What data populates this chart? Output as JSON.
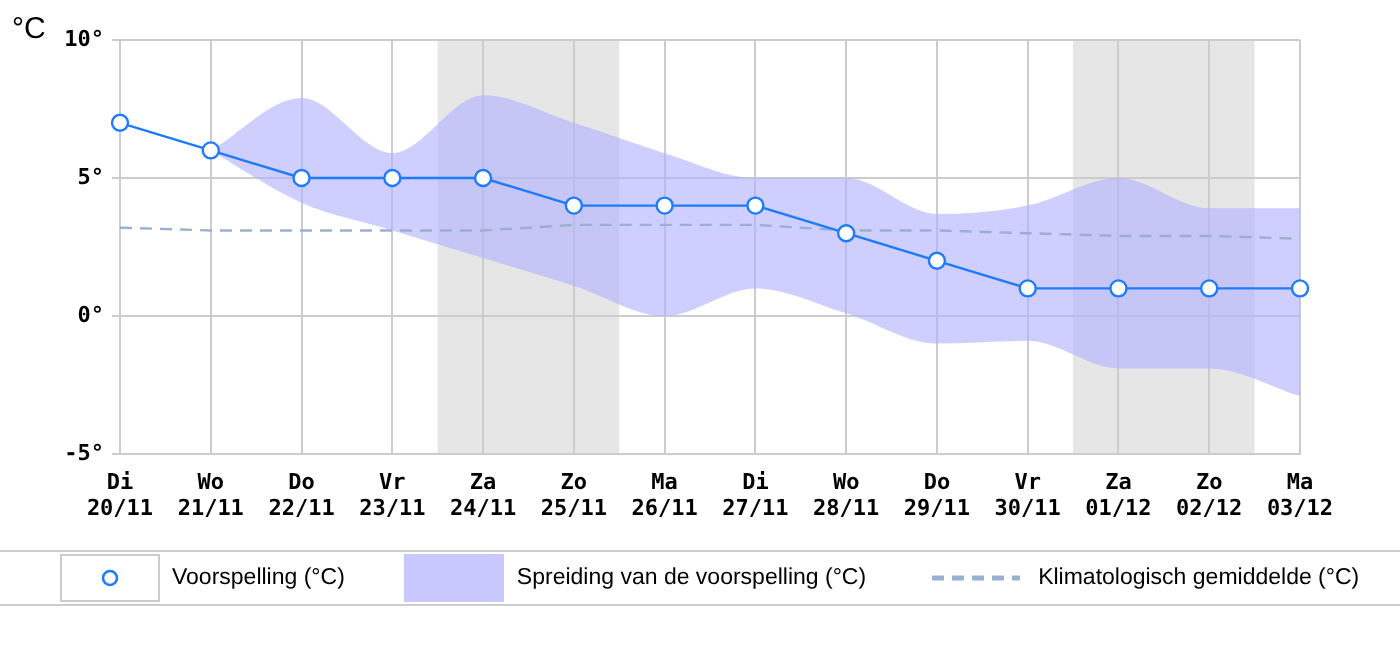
{
  "chart_data": {
    "type": "line",
    "ylabel": "°C",
    "categories": [
      "Di\n20/11",
      "Wo\n21/11",
      "Do\n22/11",
      "Vr\n23/11",
      "Za\n24/11",
      "Zo\n25/11",
      "Ma\n26/11",
      "Di\n27/11",
      "Wo\n28/11",
      "Do\n29/11",
      "Vr\n30/11",
      "Za\n01/12",
      "Zo\n02/12",
      "Ma\n03/12"
    ],
    "series": [
      {
        "name": "Voorspelling (°C)",
        "type": "line",
        "color": "#1e7bff",
        "marker": "circle",
        "values": [
          7,
          6,
          5,
          5,
          5,
          4,
          4,
          4,
          3,
          2,
          1,
          1,
          1,
          1
        ],
        "lower": [
          null,
          6,
          4.1,
          3.1,
          2.1,
          1.1,
          0,
          1,
          0.1,
          -1,
          -0.9,
          -1.9,
          -1.9,
          -2.9
        ],
        "upper": [
          null,
          6,
          7.9,
          5.9,
          8,
          7,
          5.9,
          5,
          5,
          3.7,
          4,
          5,
          3.9,
          3.9
        ]
      },
      {
        "name": "Klimatologisch gemiddelde (°C)",
        "type": "line",
        "color": "#9ab0d0",
        "marker": "none",
        "line_style": "dashed",
        "values": [
          3.2,
          3.1,
          3.1,
          3.1,
          3.1,
          3.3,
          3.3,
          3.3,
          3.1,
          3.1,
          3,
          2.9,
          2.9,
          2.8
        ]
      }
    ],
    "annotations": [
      "Spreiding van de voorspelling (°C)"
    ],
    "bands": [
      {
        "axis": "x",
        "from": "Za\n24/11",
        "to": "Zo\n25/11",
        "color": "#e6e6e6"
      },
      {
        "axis": "x",
        "from": "Za\n01/12",
        "to": "Zo\n02/12",
        "color": "#e6e6e6"
      }
    ],
    "ylim": [
      -5,
      10
    ],
    "yticks": [
      {
        "value": -5,
        "label": "-5°"
      },
      {
        "value": 0,
        "label": "0°"
      },
      {
        "value": 5,
        "label": "5°"
      },
      {
        "value": 10,
        "label": "10°"
      }
    ],
    "grid": true,
    "legend": "bottom"
  }
}
